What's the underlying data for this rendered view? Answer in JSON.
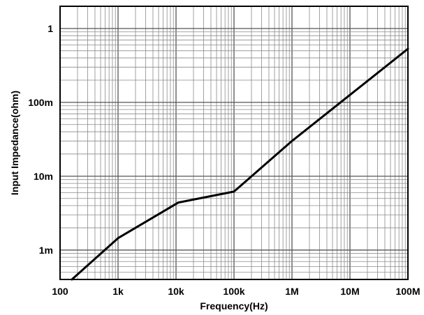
{
  "chart_data": {
    "type": "line",
    "xlabel": "Frequency(Hz)",
    "ylabel": "Input  Impedance(ohm)",
    "x_scale": "log",
    "y_scale": "log",
    "xlim": [
      100,
      100000000
    ],
    "ylim": [
      0.0004,
      2
    ],
    "grid": true,
    "x_ticks": [
      {
        "value": 100,
        "label": "100"
      },
      {
        "value": 1000,
        "label": "1k"
      },
      {
        "value": 10000,
        "label": "10k"
      },
      {
        "value": 100000,
        "label": "100k"
      },
      {
        "value": 1000000,
        "label": "1M"
      },
      {
        "value": 10000000,
        "label": "10M"
      },
      {
        "value": 100000000,
        "label": "100M"
      }
    ],
    "y_ticks": [
      {
        "value": 0.001,
        "label": "1m"
      },
      {
        "value": 0.01,
        "label": "10m"
      },
      {
        "value": 0.1,
        "label": "100m"
      },
      {
        "value": 1,
        "label": "1"
      }
    ],
    "series": [
      {
        "color": "#000000",
        "points": [
          {
            "x": 160,
            "y": 0.0004
          },
          {
            "x": 1000,
            "y": 0.00145
          },
          {
            "x": 11000,
            "y": 0.0044
          },
          {
            "x": 100000,
            "y": 0.0062
          },
          {
            "x": 1000000,
            "y": 0.03
          },
          {
            "x": 100000000,
            "y": 0.53
          }
        ]
      }
    ]
  }
}
